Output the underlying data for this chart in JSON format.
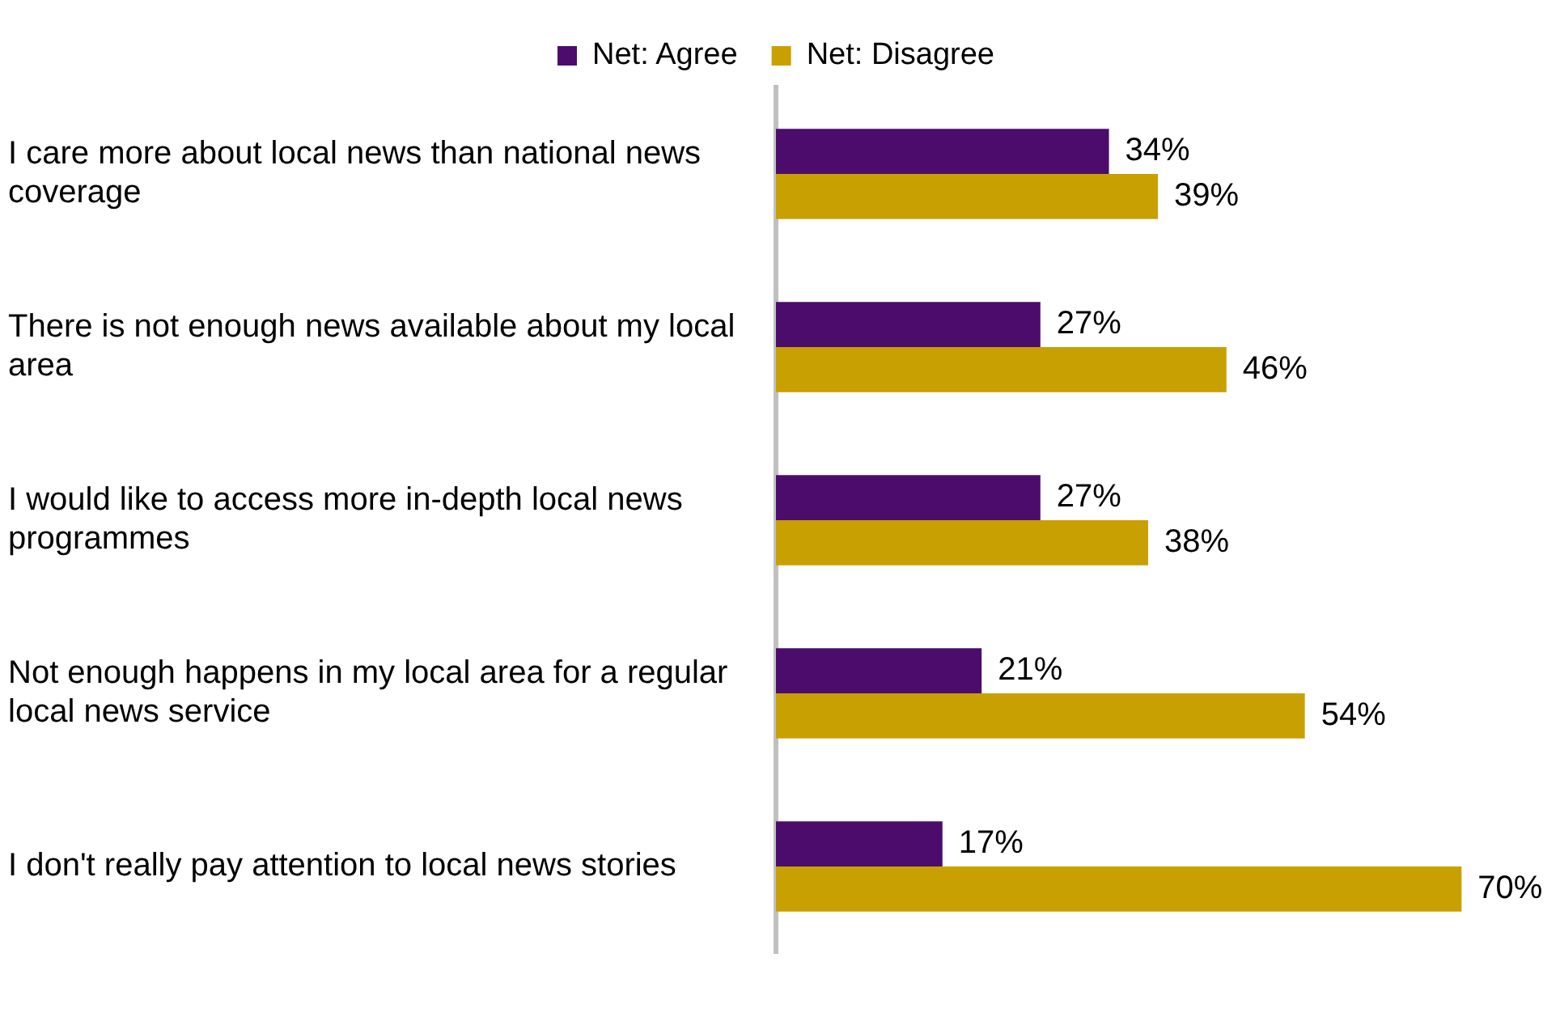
{
  "chart_data": {
    "type": "bar",
    "orientation": "horizontal",
    "categories": [
      "I care more about local news than national news coverage",
      "There is not enough news available about my local area",
      "I would like to access more in-depth local news programmes",
      "Not enough happens in my local area for a regular local news service",
      "I don't really pay attention to local news stories"
    ],
    "series": [
      {
        "name": "Net: Agree",
        "color": "#4b0c6b",
        "values": [
          34,
          27,
          27,
          21,
          17
        ],
        "value_labels": [
          "34%",
          "27%",
          "27%",
          "21%",
          "17%"
        ]
      },
      {
        "name": "Net: Disagree",
        "color": "#c9a002",
        "values": [
          39,
          46,
          38,
          54,
          70
        ],
        "value_labels": [
          "39%",
          "46%",
          "38%",
          "54%",
          "70%"
        ]
      }
    ],
    "legend": "top",
    "grid": false
  }
}
